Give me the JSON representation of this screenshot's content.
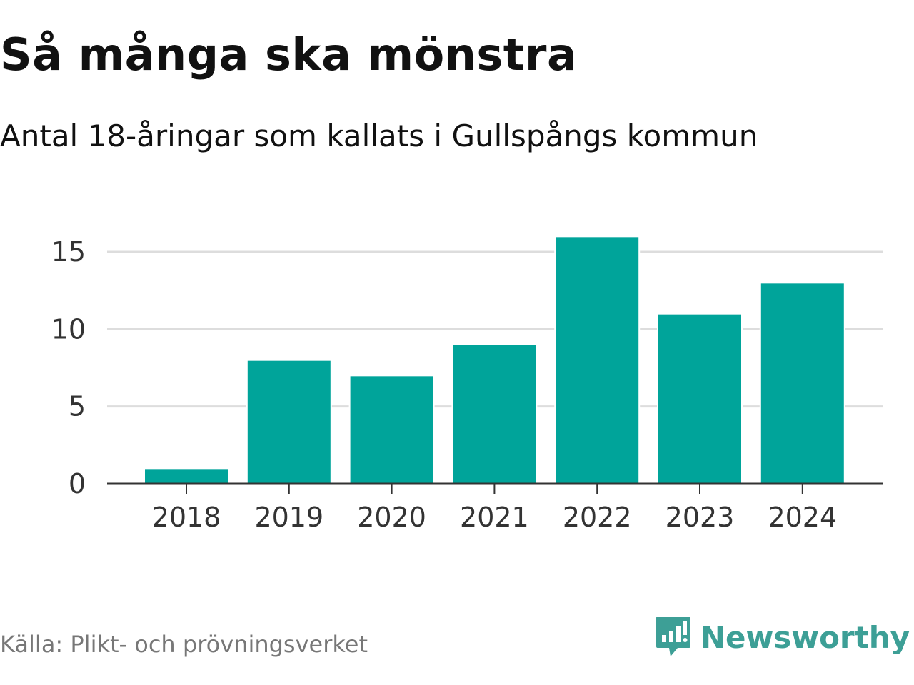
{
  "title": "Så många ska mönstra",
  "subtitle": "Antal 18-åringar som kallats i Gullspångs kommun",
  "source": "Källa: Plikt- och prövningsverket",
  "brand": {
    "name": "Newsworthy",
    "icon": "newsworthy-logo-icon"
  },
  "colors": {
    "bar": "#00a49a",
    "grid": "#dddddd",
    "axis": "#333333",
    "brand": "#3d9f96"
  },
  "chart_data": {
    "type": "bar",
    "title": "Så många ska mönstra",
    "subtitle": "Antal 18-åringar som kallats i Gullspångs kommun",
    "categories": [
      "2018",
      "2019",
      "2020",
      "2021",
      "2022",
      "2023",
      "2024"
    ],
    "values": [
      1,
      8,
      7,
      9,
      16,
      11,
      13
    ],
    "xlabel": "",
    "ylabel": "",
    "ylim": [
      0,
      16
    ],
    "yticks": [
      0,
      5,
      10,
      15
    ],
    "grid": true,
    "legend": "none"
  }
}
